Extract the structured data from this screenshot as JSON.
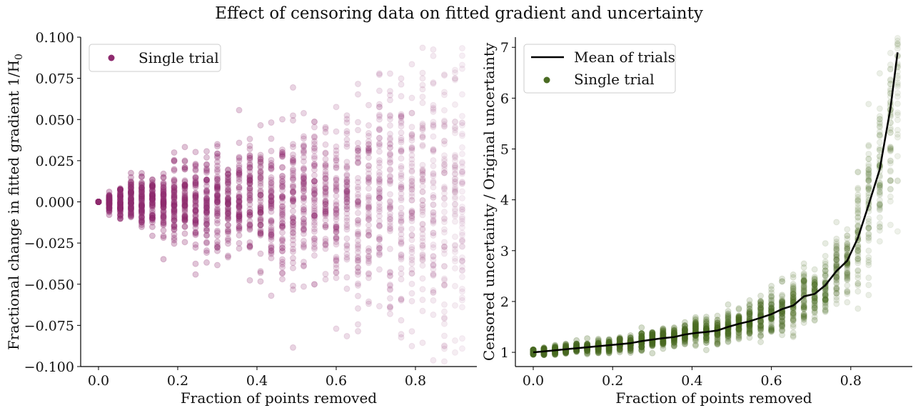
{
  "figure": {
    "title": "Effect of censoring data on fitted gradient and uncertainty"
  },
  "colors": {
    "left_points": "#8e2a6e",
    "right_points": "#4a6b23",
    "mean_line": "#000000"
  },
  "chart_data": [
    {
      "type": "scatter",
      "xlabel": "Fraction of points removed",
      "ylabel": "Fractional change in fitted gradient 1/H",
      "ylabel_subscript": "0",
      "xlim": [
        -0.045,
        0.955
      ],
      "ylim": [
        -0.1,
        0.1
      ],
      "xticks": [
        0.0,
        0.2,
        0.4,
        0.6,
        0.8
      ],
      "xtick_labels": [
        "0.0",
        "0.2",
        "0.4",
        "0.6",
        "0.8"
      ],
      "yticks": [
        -0.1,
        -0.075,
        -0.05,
        -0.025,
        0.0,
        0.025,
        0.05,
        0.075,
        0.1
      ],
      "ytick_labels": [
        "−0.100",
        "−0.075",
        "−0.050",
        "−0.025",
        "0.000",
        "0.025",
        "0.050",
        "0.075",
        "0.100"
      ],
      "legend": {
        "placement": "top-left",
        "entries": [
          "Single trial"
        ]
      },
      "grid": false,
      "x_fractions": [
        0.0,
        0.027,
        0.055,
        0.082,
        0.109,
        0.136,
        0.164,
        0.191,
        0.218,
        0.245,
        0.273,
        0.3,
        0.327,
        0.355,
        0.382,
        0.409,
        0.436,
        0.464,
        0.491,
        0.518,
        0.545,
        0.573,
        0.6,
        0.627,
        0.655,
        0.682,
        0.709,
        0.736,
        0.764,
        0.791,
        0.818,
        0.845,
        0.873,
        0.9,
        0.918
      ],
      "spread_std": [
        0.0,
        0.003,
        0.005,
        0.007,
        0.008,
        0.009,
        0.01,
        0.011,
        0.012,
        0.013,
        0.014,
        0.015,
        0.016,
        0.017,
        0.018,
        0.019,
        0.02,
        0.021,
        0.022,
        0.023,
        0.024,
        0.026,
        0.027,
        0.028,
        0.03,
        0.032,
        0.033,
        0.035,
        0.037,
        0.039,
        0.041,
        0.043,
        0.046,
        0.049,
        0.052
      ],
      "series": [
        {
          "name": "Single trial",
          "trials_per_x": 60
        }
      ]
    },
    {
      "type": "line",
      "xlabel": "Fraction of points removed",
      "ylabel": "Censored uncertainty / Original uncertainty",
      "xlim": [
        -0.045,
        0.955
      ],
      "ylim": [
        0.72,
        7.2
      ],
      "xticks": [
        0.0,
        0.2,
        0.4,
        0.6,
        0.8
      ],
      "xtick_labels": [
        "0.0",
        "0.2",
        "0.4",
        "0.6",
        "0.8"
      ],
      "yticks": [
        1,
        2,
        3,
        4,
        5,
        6,
        7
      ],
      "ytick_labels": [
        "1",
        "2",
        "3",
        "4",
        "5",
        "6",
        "7"
      ],
      "legend": {
        "placement": "top-left",
        "entries": [
          "Mean of trials",
          "Single trial"
        ]
      },
      "grid": false,
      "series": [
        {
          "name": "Mean of trials",
          "x": [
            0.0,
            0.027,
            0.055,
            0.082,
            0.109,
            0.136,
            0.164,
            0.191,
            0.218,
            0.245,
            0.273,
            0.3,
            0.327,
            0.355,
            0.382,
            0.409,
            0.436,
            0.464,
            0.491,
            0.518,
            0.545,
            0.573,
            0.6,
            0.627,
            0.655,
            0.682,
            0.709,
            0.736,
            0.764,
            0.791,
            0.818,
            0.845,
            0.873,
            0.9,
            0.918
          ],
          "y": [
            1.0,
            1.02,
            1.04,
            1.06,
            1.08,
            1.1,
            1.12,
            1.14,
            1.16,
            1.18,
            1.22,
            1.25,
            1.28,
            1.3,
            1.35,
            1.38,
            1.4,
            1.43,
            1.5,
            1.56,
            1.61,
            1.68,
            1.75,
            1.85,
            1.92,
            2.1,
            2.15,
            2.32,
            2.6,
            2.8,
            3.25,
            3.9,
            4.6,
            5.8,
            6.9
          ]
        },
        {
          "name": "Single trial",
          "trials_per_x": 60
        }
      ]
    }
  ]
}
